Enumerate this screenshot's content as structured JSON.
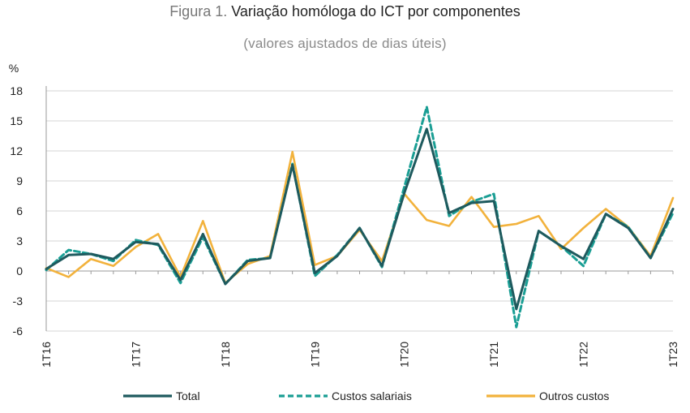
{
  "header": {
    "figure_prefix": "Figura 1.",
    "title": "Variação homóloga do ICT por componentes",
    "subtitle": "(valores ajustados de dias úteis)"
  },
  "colors": {
    "total": "#1e5a5e",
    "custos_salariais": "#1a9e94",
    "outros_custos": "#f2b23c",
    "axis": "#9a9a9a",
    "grid": "#d6d6d6"
  },
  "chart_data": {
    "type": "line",
    "ylabel": "%",
    "ylim": [
      -6,
      18
    ],
    "yticks": [
      -6,
      -3,
      0,
      3,
      6,
      9,
      12,
      15,
      18
    ],
    "grid": true,
    "legend_position": "bottom",
    "x": [
      "1T16",
      "2T16",
      "3T16",
      "4T16",
      "1T17",
      "2T17",
      "3T17",
      "4T17",
      "1T18",
      "2T18",
      "3T18",
      "4T18",
      "1T19",
      "2T19",
      "3T19",
      "4T19",
      "1T20",
      "2T20",
      "3T20",
      "4T20",
      "1T21",
      "2T21",
      "3T21",
      "4T21",
      "1T22",
      "2T22",
      "3T22",
      "4T22",
      "1T23"
    ],
    "xtick_labels": [
      "1T16",
      "1T17",
      "1T18",
      "1T19",
      "1T20",
      "1T21",
      "1T22",
      "1T23"
    ],
    "series": [
      {
        "name": "Total",
        "values": [
          0.2,
          1.6,
          1.7,
          1.2,
          2.9,
          2.7,
          -0.9,
          3.7,
          -1.3,
          1.0,
          1.3,
          10.6,
          -0.2,
          1.5,
          4.3,
          0.5,
          7.8,
          14.2,
          5.8,
          6.8,
          7.0,
          -3.8,
          4.0,
          2.5,
          1.2,
          5.7,
          4.3,
          1.3,
          6.2
        ]
      },
      {
        "name": "Custos salariais",
        "values": [
          0.1,
          2.1,
          1.7,
          1.0,
          3.1,
          2.6,
          -1.2,
          3.4,
          -1.3,
          1.1,
          1.3,
          10.7,
          -0.5,
          1.6,
          4.3,
          0.4,
          8.4,
          16.4,
          5.5,
          6.9,
          7.7,
          -5.6,
          4.0,
          2.5,
          0.5,
          5.7,
          4.4,
          1.3,
          5.8
        ]
      },
      {
        "name": "Outros custos",
        "values": [
          0.3,
          -0.6,
          1.2,
          0.5,
          2.4,
          3.7,
          -0.6,
          5.0,
          -1.2,
          0.7,
          1.5,
          11.9,
          0.6,
          1.5,
          4.1,
          1.0,
          7.7,
          5.1,
          4.5,
          7.4,
          4.4,
          4.7,
          5.5,
          2.2,
          4.3,
          6.2,
          4.4,
          1.5,
          7.3
        ]
      }
    ]
  }
}
